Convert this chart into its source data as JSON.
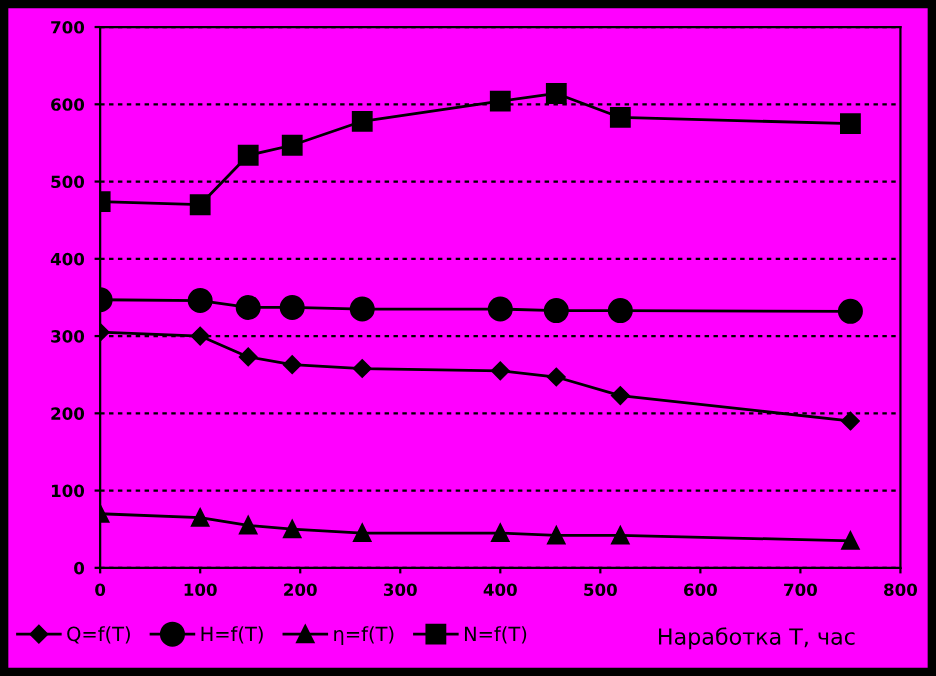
{
  "chart_data": {
    "type": "line",
    "xlabel": "Наработка Т, час",
    "x": [
      0,
      100,
      148,
      192,
      262,
      400,
      456,
      520,
      750
    ],
    "series": [
      {
        "name": "Q=f(T)",
        "color": "#000000",
        "marker": "diamond",
        "values": [
          305,
          300,
          273,
          263,
          258,
          255,
          247,
          223,
          190
        ]
      },
      {
        "name": "H=f(T)",
        "color": "#000000",
        "marker": "circle",
        "values": [
          347,
          346,
          337,
          337,
          335,
          335,
          333,
          333,
          332
        ]
      },
      {
        "name": "η=f(T)",
        "color": "#000000",
        "marker": "triangle",
        "values": [
          70,
          65,
          55,
          50,
          45,
          45,
          42,
          42,
          35
        ]
      },
      {
        "name": "N=f(T)",
        "color": "#000000",
        "marker": "square",
        "values": [
          474,
          470,
          534,
          547,
          578,
          604,
          614,
          583,
          575
        ]
      }
    ],
    "xlim": [
      0,
      800
    ],
    "xticks": [
      0,
      100,
      200,
      300,
      400,
      500,
      600,
      700,
      800
    ],
    "ylim": [
      0,
      700
    ],
    "yticks": [
      0,
      100,
      200,
      300,
      400,
      500,
      600,
      700
    ],
    "grid": "y",
    "legend": "bottom",
    "line_style": "solid"
  }
}
